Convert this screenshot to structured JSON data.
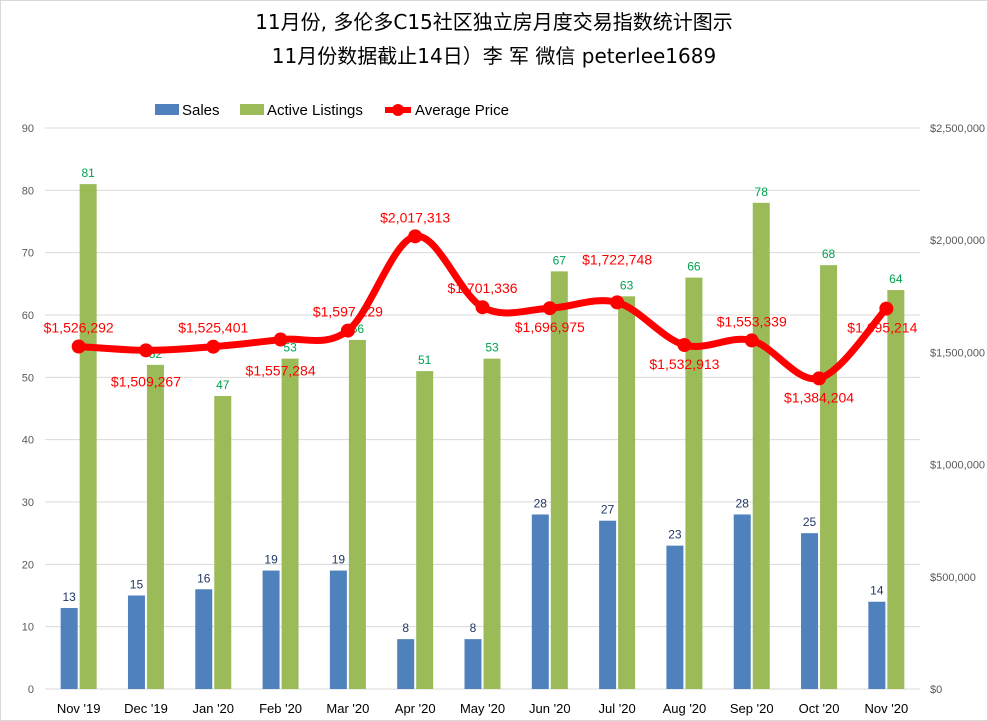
{
  "chart_data": {
    "type": "bar+line",
    "title_line1": "11月份, 多伦多C15社区独立房月度交易指数统计图示",
    "title_line2": "11月份数据截止14日）李 军  微信  peterlee1689",
    "categories": [
      "Nov '19",
      "Dec '19",
      "Jan '20",
      "Feb '20",
      "Mar '20",
      "Apr '20",
      "May '20",
      "Jun '20",
      "Jul '20",
      "Aug '20",
      "Sep '20",
      "Oct '20",
      "Nov '20"
    ],
    "series": [
      {
        "name": "Sales",
        "type": "bar",
        "axis": "left",
        "color": "#4F81BD",
        "label_color": "#1F3864",
        "values": [
          13,
          15,
          16,
          19,
          19,
          8,
          8,
          28,
          27,
          23,
          28,
          25,
          14
        ]
      },
      {
        "name": "Active Listings",
        "type": "bar",
        "axis": "left",
        "color": "#9BBB59",
        "label_color": "#00A050",
        "values": [
          81,
          52,
          47,
          53,
          56,
          51,
          53,
          67,
          63,
          66,
          78,
          68,
          64
        ]
      },
      {
        "name": "Average Price",
        "type": "line",
        "axis": "right",
        "color": "#FF0000",
        "label_color": "#FF0000",
        "values": [
          1526292,
          1509267,
          1525401,
          1557284,
          1597129,
          2017313,
          1701336,
          1696975,
          1722748,
          1532913,
          1553339,
          1384204,
          1695214
        ],
        "labels": [
          "$1,526,292",
          "$1,509,267",
          "$1,525,401",
          "$1,557,284",
          "$1,597,129",
          "$2,017,313",
          "$1,701,336",
          "$1,696,975",
          "$1,722,748",
          "$1,532,913",
          "$1,553,339",
          "$1,384,204",
          "$1,695,214"
        ]
      }
    ],
    "left_axis": {
      "min": 0,
      "max": 90,
      "step": 10,
      "ticks": [
        "0",
        "10",
        "20",
        "30",
        "40",
        "50",
        "60",
        "70",
        "80",
        "90"
      ]
    },
    "right_axis": {
      "min": 0,
      "max": 2500000,
      "step": 500000,
      "ticks": [
        "$0",
        "$500,000",
        "$1,000,000",
        "$1,500,000",
        "$2,000,000",
        "$2,500,000"
      ]
    },
    "legend": {
      "placement": "top",
      "items": [
        "Sales",
        "Active Listings",
        "Average Price"
      ]
    },
    "grid": true
  }
}
